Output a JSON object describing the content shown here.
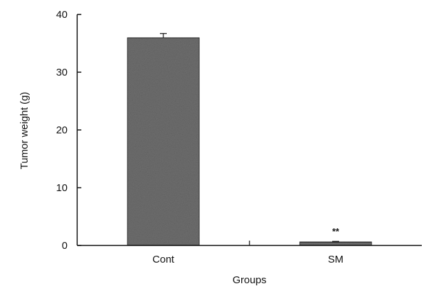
{
  "chart_data": {
    "type": "bar",
    "title": "",
    "xlabel": "Groups",
    "ylabel": "Tumor weight (g)",
    "categories": [
      "Cont",
      "SM"
    ],
    "values": [
      36.0,
      0.6
    ],
    "error": [
      0.7,
      0.1
    ],
    "annotations": [
      "",
      "**"
    ],
    "ylim": [
      0,
      40
    ],
    "yticks": [
      0,
      10,
      20,
      30,
      40
    ],
    "ytick_labels": [
      "0",
      "10",
      "20",
      "30",
      "40"
    ],
    "grid": false,
    "legend": "none",
    "colors": {
      "bar": "#6f6f6f",
      "bar_edge": "#1a1a1a",
      "axis": "#111111"
    }
  }
}
